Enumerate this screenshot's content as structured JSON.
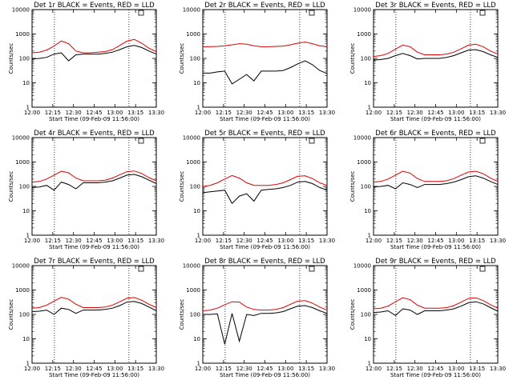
{
  "chart_data": [
    {
      "type": "line",
      "title": "Det 1r BLACK = Events, RED = LLD",
      "xlabel": "Start Time (09-Feb-09 11:56:00)",
      "ylabel": "Counts/sec",
      "xlim": [
        0,
        100
      ],
      "ylim": [
        1,
        10000
      ],
      "yscale": "log",
      "x_ticks": [
        "12:00",
        "12:15",
        "12:30",
        "12:45",
        "13:00",
        "13:15",
        "13:30"
      ],
      "y_ticks": [
        "1",
        "10",
        "100",
        "1000",
        "10000"
      ],
      "vlines": [
        18,
        78
      ],
      "series": [
        {
          "color": "#000000",
          "values": [
            95,
            100,
            110,
            150,
            170,
            80,
            140,
            150,
            150,
            150,
            160,
            180,
            230,
            300,
            340,
            280,
            200,
            150
          ]
        },
        {
          "color": "#e00000",
          "values": [
            170,
            180,
            220,
            320,
            520,
            400,
            200,
            170,
            170,
            180,
            190,
            230,
            340,
            510,
            600,
            420,
            260,
            190
          ]
        }
      ]
    },
    {
      "type": "line",
      "title": "Det 2r BLACK = Events, RED = LLD",
      "xlabel": "Start Time (09-Feb-09 11:56:00)",
      "ylabel": "Counts/sec",
      "xlim": [
        0,
        100
      ],
      "ylim": [
        1,
        10000
      ],
      "yscale": "log",
      "x_ticks": [
        "12:00",
        "12:15",
        "12:30",
        "12:45",
        "13:00",
        "13:15",
        "13:30"
      ],
      "y_ticks": [
        "1",
        "10",
        "100",
        "1000",
        "10000"
      ],
      "vlines": [
        18,
        78
      ],
      "series": [
        {
          "color": "#000000",
          "values": [
            25,
            25,
            28,
            30,
            9,
            14,
            22,
            12,
            30,
            30,
            30,
            32,
            42,
            60,
            80,
            55,
            32,
            24
          ]
        },
        {
          "color": "#e00000",
          "values": [
            300,
            300,
            310,
            330,
            360,
            400,
            380,
            330,
            300,
            300,
            310,
            320,
            360,
            420,
            470,
            400,
            330,
            300
          ]
        }
      ]
    },
    {
      "type": "line",
      "title": "Det 3r BLACK = Events, RED = LLD",
      "xlabel": "Start Time (09-Feb-09 11:56:00)",
      "ylabel": "Counts/sec",
      "xlim": [
        0,
        100
      ],
      "ylim": [
        1,
        10000
      ],
      "yscale": "log",
      "x_ticks": [
        "12:00",
        "12:15",
        "12:30",
        "12:45",
        "13:00",
        "13:15",
        "13:30"
      ],
      "y_ticks": [
        "1",
        "10",
        "100",
        "1000",
        "10000"
      ],
      "vlines": [
        18,
        78
      ],
      "series": [
        {
          "color": "#000000",
          "values": [
            85,
            90,
            100,
            130,
            160,
            130,
            95,
            100,
            100,
            100,
            110,
            130,
            170,
            220,
            230,
            190,
            140,
            110
          ]
        },
        {
          "color": "#e00000",
          "values": [
            120,
            130,
            160,
            240,
            350,
            300,
            180,
            140,
            140,
            140,
            150,
            180,
            250,
            350,
            380,
            300,
            200,
            150
          ]
        }
      ]
    },
    {
      "type": "line",
      "title": "Det 4r BLACK = Events, RED = LLD",
      "xlabel": "Start Time (09-Feb-09 11:56:00)",
      "ylabel": "Counts/sec",
      "xlim": [
        0,
        100
      ],
      "ylim": [
        1,
        10000
      ],
      "yscale": "log",
      "x_ticks": [
        "12:00",
        "12:15",
        "12:30",
        "12:45",
        "13:00",
        "13:15",
        "13:30"
      ],
      "y_ticks": [
        "1",
        "10",
        "100",
        "1000",
        "10000"
      ],
      "vlines": [
        18,
        78
      ],
      "series": [
        {
          "color": "#000000",
          "values": [
            90,
            95,
            110,
            70,
            150,
            120,
            80,
            140,
            140,
            140,
            150,
            170,
            220,
            290,
            310,
            250,
            180,
            130
          ]
        },
        {
          "color": "#e00000",
          "values": [
            150,
            160,
            200,
            290,
            420,
            360,
            220,
            170,
            170,
            170,
            180,
            220,
            300,
            400,
            430,
            340,
            230,
            170
          ]
        }
      ]
    },
    {
      "type": "line",
      "title": "Det 5r BLACK = Events, RED = LLD",
      "xlabel": "Start Time (09-Feb-09 11:56:00)",
      "ylabel": "Counts/sec",
      "xlim": [
        0,
        100
      ],
      "ylim": [
        1,
        10000
      ],
      "yscale": "log",
      "x_ticks": [
        "12:00",
        "12:15",
        "12:30",
        "12:45",
        "13:00",
        "13:15",
        "13:30"
      ],
      "y_ticks": [
        "1",
        "10",
        "100",
        "1000",
        "10000"
      ],
      "vlines": [
        18,
        78
      ],
      "series": [
        {
          "color": "#000000",
          "values": [
            55,
            60,
            65,
            70,
            20,
            40,
            50,
            25,
            70,
            75,
            80,
            90,
            110,
            150,
            160,
            130,
            90,
            70
          ]
        },
        {
          "color": "#e00000",
          "values": [
            100,
            110,
            140,
            200,
            280,
            220,
            140,
            110,
            110,
            110,
            120,
            140,
            190,
            260,
            270,
            210,
            140,
            110
          ]
        }
      ]
    },
    {
      "type": "line",
      "title": "Det 6r BLACK = Events, RED = LLD",
      "xlabel": "Start Time (09-Feb-09 11:56:00)",
      "ylabel": "Counts/sec",
      "xlim": [
        0,
        100
      ],
      "ylim": [
        1,
        10000
      ],
      "yscale": "log",
      "x_ticks": [
        "12:00",
        "12:15",
        "12:30",
        "12:45",
        "13:00",
        "13:15",
        "13:30"
      ],
      "y_ticks": [
        "1",
        "10",
        "100",
        "1000",
        "10000"
      ],
      "vlines": [
        18,
        78
      ],
      "series": [
        {
          "color": "#000000",
          "values": [
            95,
            100,
            110,
            80,
            140,
            120,
            90,
            120,
            120,
            120,
            130,
            150,
            190,
            250,
            270,
            220,
            160,
            120
          ]
        },
        {
          "color": "#e00000",
          "values": [
            150,
            160,
            200,
            290,
            420,
            350,
            210,
            160,
            160,
            160,
            170,
            210,
            290,
            390,
            420,
            330,
            220,
            160
          ]
        }
      ]
    },
    {
      "type": "line",
      "title": "Det 7r BLACK = Events, RED = LLD",
      "xlabel": "Start Time (09-Feb-09 11:56:00)",
      "ylabel": "Counts/sec",
      "xlim": [
        0,
        100
      ],
      "ylim": [
        1,
        10000
      ],
      "yscale": "log",
      "x_ticks": [
        "12:00",
        "12:15",
        "12:30",
        "12:45",
        "13:00",
        "13:15",
        "13:30"
      ],
      "y_ticks": [
        "1",
        "10",
        "100",
        "1000",
        "10000"
      ],
      "vlines": [
        18,
        78
      ],
      "series": [
        {
          "color": "#000000",
          "values": [
            130,
            135,
            150,
            100,
            180,
            160,
            110,
            150,
            150,
            150,
            160,
            180,
            230,
            320,
            340,
            280,
            200,
            140
          ]
        },
        {
          "color": "#e00000",
          "values": [
            180,
            190,
            240,
            350,
            500,
            420,
            260,
            190,
            190,
            190,
            200,
            240,
            330,
            460,
            490,
            380,
            260,
            190
          ]
        }
      ]
    },
    {
      "type": "line",
      "title": "Det 8r BLACK = Events, RED = LLD",
      "xlabel": "Start Time (09-Feb-09 11:56:00)",
      "ylabel": "Counts/sec",
      "xlim": [
        0,
        100
      ],
      "ylim": [
        1,
        10000
      ],
      "yscale": "log",
      "x_ticks": [
        "12:00",
        "12:15",
        "12:30",
        "12:45",
        "13:00",
        "13:15",
        "13:30"
      ],
      "y_ticks": [
        "1",
        "10",
        "100",
        "1000",
        "10000"
      ],
      "vlines": [
        18,
        78
      ],
      "series": [
        {
          "color": "#000000",
          "values": [
            100,
            100,
            105,
            6,
            110,
            8,
            100,
            90,
            110,
            110,
            115,
            130,
            170,
            220,
            230,
            190,
            140,
            110
          ]
        },
        {
          "color": "#e00000",
          "values": [
            140,
            150,
            180,
            250,
            330,
            320,
            200,
            160,
            150,
            150,
            160,
            190,
            260,
            350,
            370,
            290,
            200,
            150
          ]
        }
      ]
    },
    {
      "type": "line",
      "title": "Det 9r BLACK = Events, RED = LLD",
      "xlabel": "Start Time (09-Feb-09 11:56:00)",
      "ylabel": "Counts/sec",
      "xlim": [
        0,
        100
      ],
      "ylim": [
        1,
        10000
      ],
      "yscale": "log",
      "x_ticks": [
        "12:00",
        "12:15",
        "12:30",
        "12:45",
        "13:00",
        "13:15",
        "13:30"
      ],
      "y_ticks": [
        "1",
        "10",
        "100",
        "1000",
        "10000"
      ],
      "vlines": [
        18,
        78
      ],
      "series": [
        {
          "color": "#000000",
          "values": [
            120,
            125,
            140,
            90,
            170,
            150,
            100,
            140,
            140,
            140,
            150,
            170,
            220,
            300,
            330,
            270,
            190,
            135
          ]
        },
        {
          "color": "#e00000",
          "values": [
            170,
            180,
            220,
            330,
            480,
            400,
            240,
            180,
            180,
            180,
            190,
            230,
            320,
            450,
            480,
            370,
            250,
            180
          ]
        }
      ]
    }
  ]
}
